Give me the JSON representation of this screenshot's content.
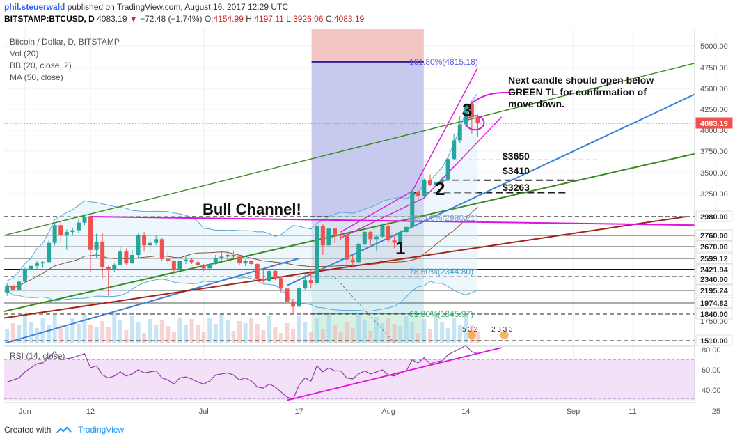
{
  "header": {
    "author": "phil.steuerwald",
    "published_text": "published on TradingView.com, August 16, 2017 12:29 UTC",
    "symbol_line": "BITSTAMP:BTCUSD, D",
    "last_price": "4083.19",
    "change": "−72.48 (−1.74%)",
    "open_label": "O:",
    "open": "4154.99",
    "high_label": "H:",
    "high": "4197.11",
    "low_label": "L:",
    "low": "3926.06",
    "close_label": "C:",
    "close": "4083.19"
  },
  "legend": {
    "main": "Bitcoin / Dollar, D, BITSTAMP",
    "vol": "Vol (20)",
    "bb": "BB (20, close, 2)",
    "ma": "MA (50, close)",
    "rsi": "RSI (14, close)"
  },
  "annotations": {
    "bull_channel": "Bull Channel!",
    "note": [
      "Next candle should open below",
      "GREEN TL for confirmation of",
      "move down."
    ],
    "wave_1": "1",
    "wave_2": "2",
    "wave_3": "3",
    "level_3650": "$3650",
    "level_3410": "$3410",
    "level_3263": "$3263",
    "fib_1618": "161.80%(4815.18)",
    "fib_100": "100.00%(2980.21)",
    "fib_786": "78.60%(2344.80)",
    "fib_618": "61.80%(1845.97)",
    "event_1": "5 3 2",
    "event_2": "2 3 3 3"
  },
  "footer": {
    "created_with": "Created with",
    "brand": "TradingView"
  },
  "colors": {
    "up": "#26a69a",
    "down": "#ef5350",
    "ma": "#8d4b2e",
    "bb": "#5aa9d6",
    "green_tl": "#3a8a1e",
    "blue_tl": "#3b82d6",
    "red_tl": "#a82315",
    "magenta": "#e012e0",
    "fib_top": "#2a1f9a"
  },
  "chart_data": {
    "type": "candlestick",
    "title": "Bitcoin / Dollar, D, BITSTAMP",
    "y_ticks": [
      5000,
      4750,
      4500,
      4250,
      4000,
      3750,
      3500,
      3250,
      1750,
      1510
    ],
    "y_highlight_labels": [
      "4083.19",
      "2980.00",
      "2760.00",
      "2670.00",
      "2599.12",
      "2421.94",
      "2340.00",
      "2195.24",
      "1974.82",
      "1840.00",
      "1510.00"
    ],
    "x_labels": [
      "Jun",
      "12",
      "Jul",
      "17",
      "Aug",
      "14",
      "Sep",
      "11",
      "25"
    ],
    "ohlc": [
      [
        "2017-05-29",
        2150,
        2290,
        2100,
        2260
      ],
      [
        "2017-05-30",
        2260,
        2300,
        2180,
        2200
      ],
      [
        "2017-05-31",
        2200,
        2340,
        2180,
        2310
      ],
      [
        "2017-06-01",
        2310,
        2450,
        2300,
        2420
      ],
      [
        "2017-06-02",
        2420,
        2500,
        2390,
        2480
      ],
      [
        "2017-06-03",
        2480,
        2560,
        2430,
        2520
      ],
      [
        "2017-06-04",
        2520,
        2560,
        2450,
        2540
      ],
      [
        "2017-06-05",
        2540,
        2720,
        2530,
        2700
      ],
      [
        "2017-06-06",
        2700,
        2900,
        2680,
        2880
      ],
      [
        "2017-06-07",
        2880,
        2920,
        2700,
        2760
      ],
      [
        "2017-06-08",
        2760,
        2830,
        2650,
        2800
      ],
      [
        "2017-06-09",
        2800,
        2850,
        2760,
        2820
      ],
      [
        "2017-06-10",
        2820,
        2950,
        2790,
        2910
      ],
      [
        "2017-06-11",
        2910,
        3010,
        2880,
        2980
      ],
      [
        "2017-06-12",
        2980,
        2990,
        2400,
        2650
      ],
      [
        "2017-06-13",
        2650,
        2780,
        2600,
        2710
      ],
      [
        "2017-06-14",
        2710,
        2790,
        2350,
        2460
      ],
      [
        "2017-06-15",
        2460,
        2480,
        2100,
        2420
      ],
      [
        "2017-06-16",
        2420,
        2520,
        2400,
        2500
      ],
      [
        "2017-06-17",
        2500,
        2670,
        2490,
        2640
      ],
      [
        "2017-06-18",
        2640,
        2660,
        2500,
        2520
      ],
      [
        "2017-06-19",
        2520,
        2650,
        2510,
        2620
      ],
      [
        "2017-06-20",
        2620,
        2780,
        2600,
        2760
      ],
      [
        "2017-06-21",
        2760,
        2800,
        2640,
        2680
      ],
      [
        "2017-06-22",
        2680,
        2740,
        2630,
        2700
      ],
      [
        "2017-06-23",
        2700,
        2760,
        2680,
        2730
      ],
      [
        "2017-06-24",
        2730,
        2740,
        2560,
        2590
      ],
      [
        "2017-06-25",
        2590,
        2640,
        2490,
        2560
      ],
      [
        "2017-06-26",
        2560,
        2570,
        2380,
        2430
      ],
      [
        "2017-06-27",
        2430,
        2580,
        2350,
        2560
      ],
      [
        "2017-06-28",
        2560,
        2620,
        2510,
        2580
      ],
      [
        "2017-06-29",
        2580,
        2600,
        2510,
        2540
      ],
      [
        "2017-06-30",
        2540,
        2560,
        2460,
        2490
      ],
      [
        "2017-07-01",
        2490,
        2510,
        2410,
        2440
      ],
      [
        "2017-07-02",
        2440,
        2520,
        2400,
        2510
      ],
      [
        "2017-07-03",
        2510,
        2620,
        2500,
        2600
      ],
      [
        "2017-07-04",
        2600,
        2640,
        2570,
        2610
      ],
      [
        "2017-07-05",
        2610,
        2640,
        2560,
        2620
      ],
      [
        "2017-07-06",
        2620,
        2640,
        2580,
        2610
      ],
      [
        "2017-07-07",
        2610,
        2620,
        2490,
        2520
      ],
      [
        "2017-07-08",
        2520,
        2580,
        2480,
        2560
      ],
      [
        "2017-07-09",
        2560,
        2570,
        2500,
        2510
      ],
      [
        "2017-07-10",
        2510,
        2520,
        2320,
        2340
      ],
      [
        "2017-07-11",
        2340,
        2420,
        2300,
        2320
      ],
      [
        "2017-07-12",
        2320,
        2420,
        2300,
        2410
      ],
      [
        "2017-07-13",
        2410,
        2420,
        2330,
        2350
      ],
      [
        "2017-07-14",
        2350,
        2360,
        2160,
        2220
      ],
      [
        "2017-07-15",
        2220,
        2240,
        1980,
        2000
      ],
      [
        "2017-07-16",
        2000,
        2050,
        1840,
        1930
      ],
      [
        "2017-07-17",
        1930,
        2250,
        1920,
        2230
      ],
      [
        "2017-07-18",
        2230,
        2400,
        2200,
        2330
      ],
      [
        "2017-07-19",
        2330,
        2420,
        2220,
        2290
      ],
      [
        "2017-07-20",
        2290,
        2900,
        2270,
        2870
      ],
      [
        "2017-07-21",
        2870,
        2890,
        2620,
        2680
      ],
      [
        "2017-07-22",
        2680,
        2860,
        2660,
        2840
      ],
      [
        "2017-07-23",
        2840,
        2850,
        2700,
        2770
      ],
      [
        "2017-07-24",
        2770,
        2790,
        2720,
        2760
      ],
      [
        "2017-07-25",
        2760,
        2780,
        2480,
        2580
      ],
      [
        "2017-07-26",
        2580,
        2620,
        2450,
        2540
      ],
      [
        "2017-07-27",
        2540,
        2700,
        2530,
        2690
      ],
      [
        "2017-07-28",
        2690,
        2810,
        2680,
        2800
      ],
      [
        "2017-07-29",
        2800,
        2810,
        2680,
        2730
      ],
      [
        "2017-07-30",
        2730,
        2760,
        2640,
        2750
      ],
      [
        "2017-07-31",
        2750,
        2890,
        2740,
        2870
      ],
      [
        "2017-08-01",
        2870,
        2920,
        2700,
        2720
      ],
      [
        "2017-08-02",
        2720,
        2760,
        2660,
        2700
      ],
      [
        "2017-08-03",
        2700,
        2820,
        2690,
        2800
      ],
      [
        "2017-08-04",
        2800,
        2880,
        2770,
        2860
      ],
      [
        "2017-08-05",
        2860,
        3300,
        2850,
        3270
      ],
      [
        "2017-08-06",
        3270,
        3290,
        3170,
        3220
      ],
      [
        "2017-08-07",
        3220,
        3430,
        3200,
        3410
      ],
      [
        "2017-08-08",
        3410,
        3480,
        3340,
        3350
      ],
      [
        "2017-08-09",
        3350,
        3410,
        3220,
        3390
      ],
      [
        "2017-08-10",
        3390,
        3450,
        3370,
        3420
      ],
      [
        "2017-08-11",
        3420,
        3700,
        3410,
        3660
      ],
      [
        "2017-08-12",
        3660,
        3960,
        3650,
        3880
      ],
      [
        "2017-08-13",
        3880,
        4170,
        3850,
        4070
      ],
      [
        "2017-08-14",
        4070,
        4330,
        4000,
        4310
      ],
      [
        "2017-08-15",
        4310,
        4350,
        3960,
        4155
      ],
      [
        "2017-08-16",
        4154.99,
        4197.11,
        3926.06,
        4083.19
      ]
    ],
    "levels": {
      "fib_161_8": 4815.18,
      "fib_100": 2980.21,
      "fib_78_6": 2344.8,
      "fib_61_8": 1845.97,
      "target_3650": 3650,
      "target_3410": 3410,
      "target_3263": 3263
    },
    "rsi_ticks": [
      80,
      60,
      40
    ],
    "rsi_values": [
      48,
      50,
      52,
      58,
      62,
      66,
      67,
      72,
      78,
      70,
      71,
      72,
      74,
      76,
      62,
      64,
      55,
      52,
      54,
      58,
      54,
      56,
      60,
      57,
      58,
      59,
      52,
      50,
      46,
      52,
      53,
      51,
      48,
      46,
      49,
      55,
      56,
      57,
      55,
      50,
      52,
      49,
      43,
      42,
      46,
      43,
      38,
      33,
      31,
      45,
      52,
      49,
      64,
      58,
      62,
      59,
      59,
      52,
      51,
      56,
      59,
      56,
      58,
      60,
      55,
      54,
      57,
      59,
      70,
      67,
      72,
      66,
      68,
      69,
      75,
      78,
      81,
      84,
      78,
      76
    ]
  }
}
